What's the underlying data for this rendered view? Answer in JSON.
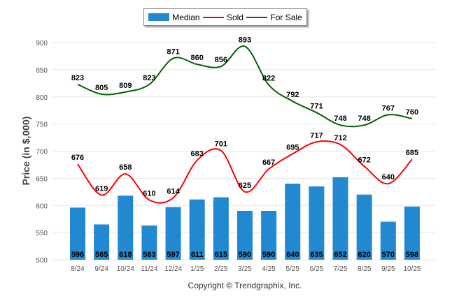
{
  "chart_data": {
    "type": "bar",
    "ylabel": "Price (in $,000)",
    "ylim": [
      500,
      900
    ],
    "yticks": [
      500,
      550,
      600,
      650,
      700,
      750,
      800,
      850,
      900
    ],
    "grid": true,
    "legend_position": "top-center",
    "categories": [
      "8/24",
      "9/24",
      "10/24",
      "11/24",
      "12/24",
      "1/25",
      "2/25",
      "3/25",
      "4/25",
      "5/25",
      "6/25",
      "7/25",
      "8/25",
      "9/25",
      "10/25"
    ],
    "series": [
      {
        "name": "Median",
        "type": "bar",
        "color": "#2288d0",
        "values": [
          596,
          565,
          618,
          563,
          597,
          611,
          615,
          590,
          590,
          640,
          635,
          652,
          620,
          570,
          598
        ]
      },
      {
        "name": "Sold",
        "type": "line",
        "color": "#ff0000",
        "values": [
          676,
          619,
          658,
          610,
          614,
          683,
          701,
          625,
          667,
          695,
          717,
          712,
          672,
          640,
          685
        ]
      },
      {
        "name": "For Sale",
        "type": "line",
        "color": "#006400",
        "values": [
          823,
          805,
          809,
          823,
          871,
          860,
          856,
          893,
          822,
          792,
          771,
          748,
          748,
          767,
          760
        ]
      }
    ]
  },
  "copyright": "Copyright © Trendgraphix, Inc."
}
